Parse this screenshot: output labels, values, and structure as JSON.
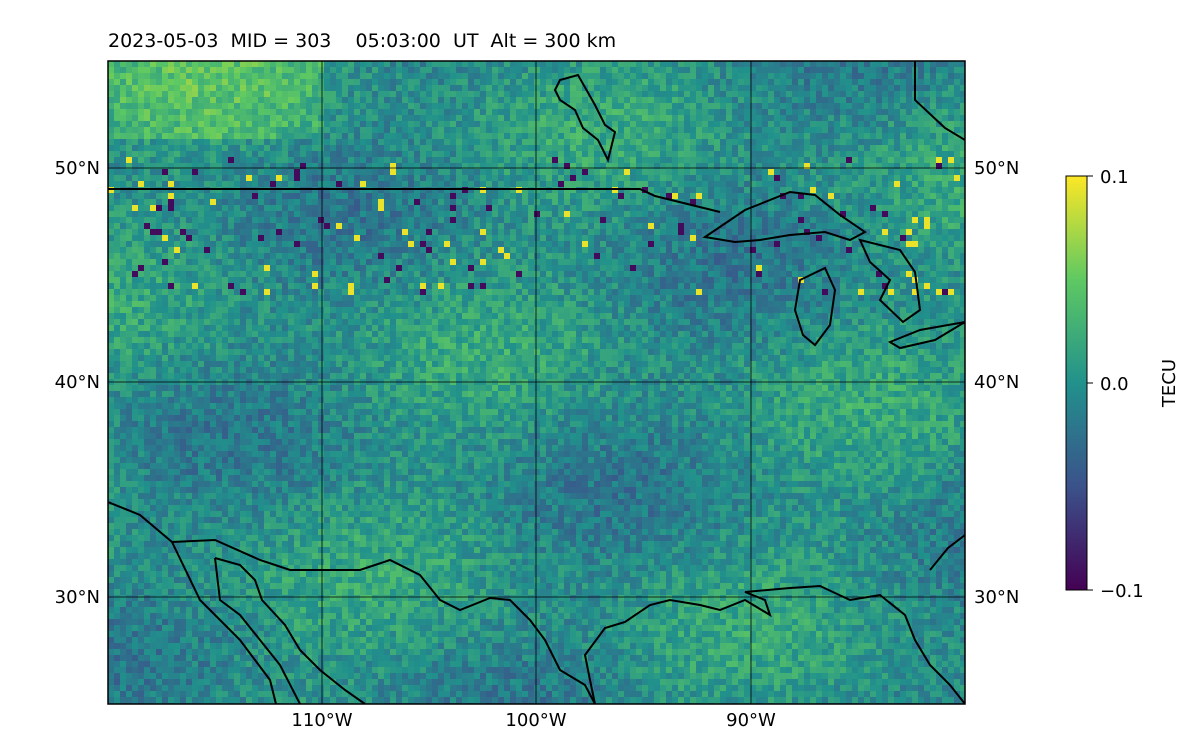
{
  "title": "2023-05-03  MID = 303    05:03:00  UT  Alt = 300 km",
  "map": {
    "lon_range": [
      -120,
      -80
    ],
    "lat_range": [
      25,
      55
    ],
    "lon_ticks": [
      {
        "value": -110,
        "label": "110°W"
      },
      {
        "value": -100,
        "label": "100°W"
      },
      {
        "value": -90,
        "label": "90°W"
      }
    ],
    "lat_ticks": [
      {
        "value": 50,
        "label": "50°N"
      },
      {
        "value": 40,
        "label": "40°N"
      },
      {
        "value": 30,
        "label": "30°N"
      }
    ],
    "gridlines": true,
    "colormap": [
      "#440154",
      "#3b528b",
      "#21918c",
      "#5ec962",
      "#fde725"
    ]
  },
  "colorbar": {
    "label": "TECU",
    "min": -0.1,
    "max": 0.1,
    "ticks": [
      {
        "value": 0.1,
        "label": "0.1"
      },
      {
        "value": 0.0,
        "label": "0.0"
      },
      {
        "value": -0.1,
        "label": "−0.1"
      }
    ]
  }
}
